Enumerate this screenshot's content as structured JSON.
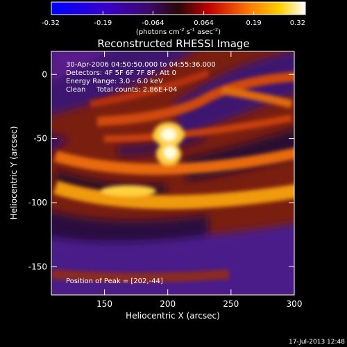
{
  "colorbar": {
    "ticks": [
      "-0.32",
      "-0.19",
      "-0.064",
      "0.064",
      "0.19",
      "0.32"
    ],
    "units_main": "(photons cm",
    "units_exp1": "-2",
    "units_mid": " s",
    "units_exp2": "-1",
    "units_mid2": " asec",
    "units_exp3": "-2",
    "units_end": ")"
  },
  "chart_data": {
    "type": "heatmap",
    "title": "Reconstructed RHESSI Image",
    "xlabel": "Heliocentric X (arcsec)",
    "ylabel": "Heliocentric Y (arcsec)",
    "xlim": [
      108,
      300
    ],
    "ylim": [
      -172,
      18
    ],
    "xticks": [
      "150",
      "200",
      "250",
      "300"
    ],
    "yticks": [
      "0",
      "-50",
      "-100",
      "-150"
    ],
    "xtick_values": [
      150,
      200,
      250,
      300
    ],
    "ytick_values": [
      0,
      -50,
      -100,
      -150
    ],
    "colorbar_range": [
      -0.32,
      0.32
    ],
    "peak": [
      202,
      -44
    ],
    "annotations": [
      "30-Apr-2006 04:50:50.000 to 04:55:36.000",
      "Detectors: 4F 5F 6F 7F 8F, Att 0",
      "Energy Range: 3.0 - 6.0 keV",
      "Clean     Total counts: 2.86E+04"
    ],
    "peak_label": "Position of Peak = [202,-44]"
  },
  "footer": {
    "timestamp": "17-Jul-2013 12:48"
  }
}
